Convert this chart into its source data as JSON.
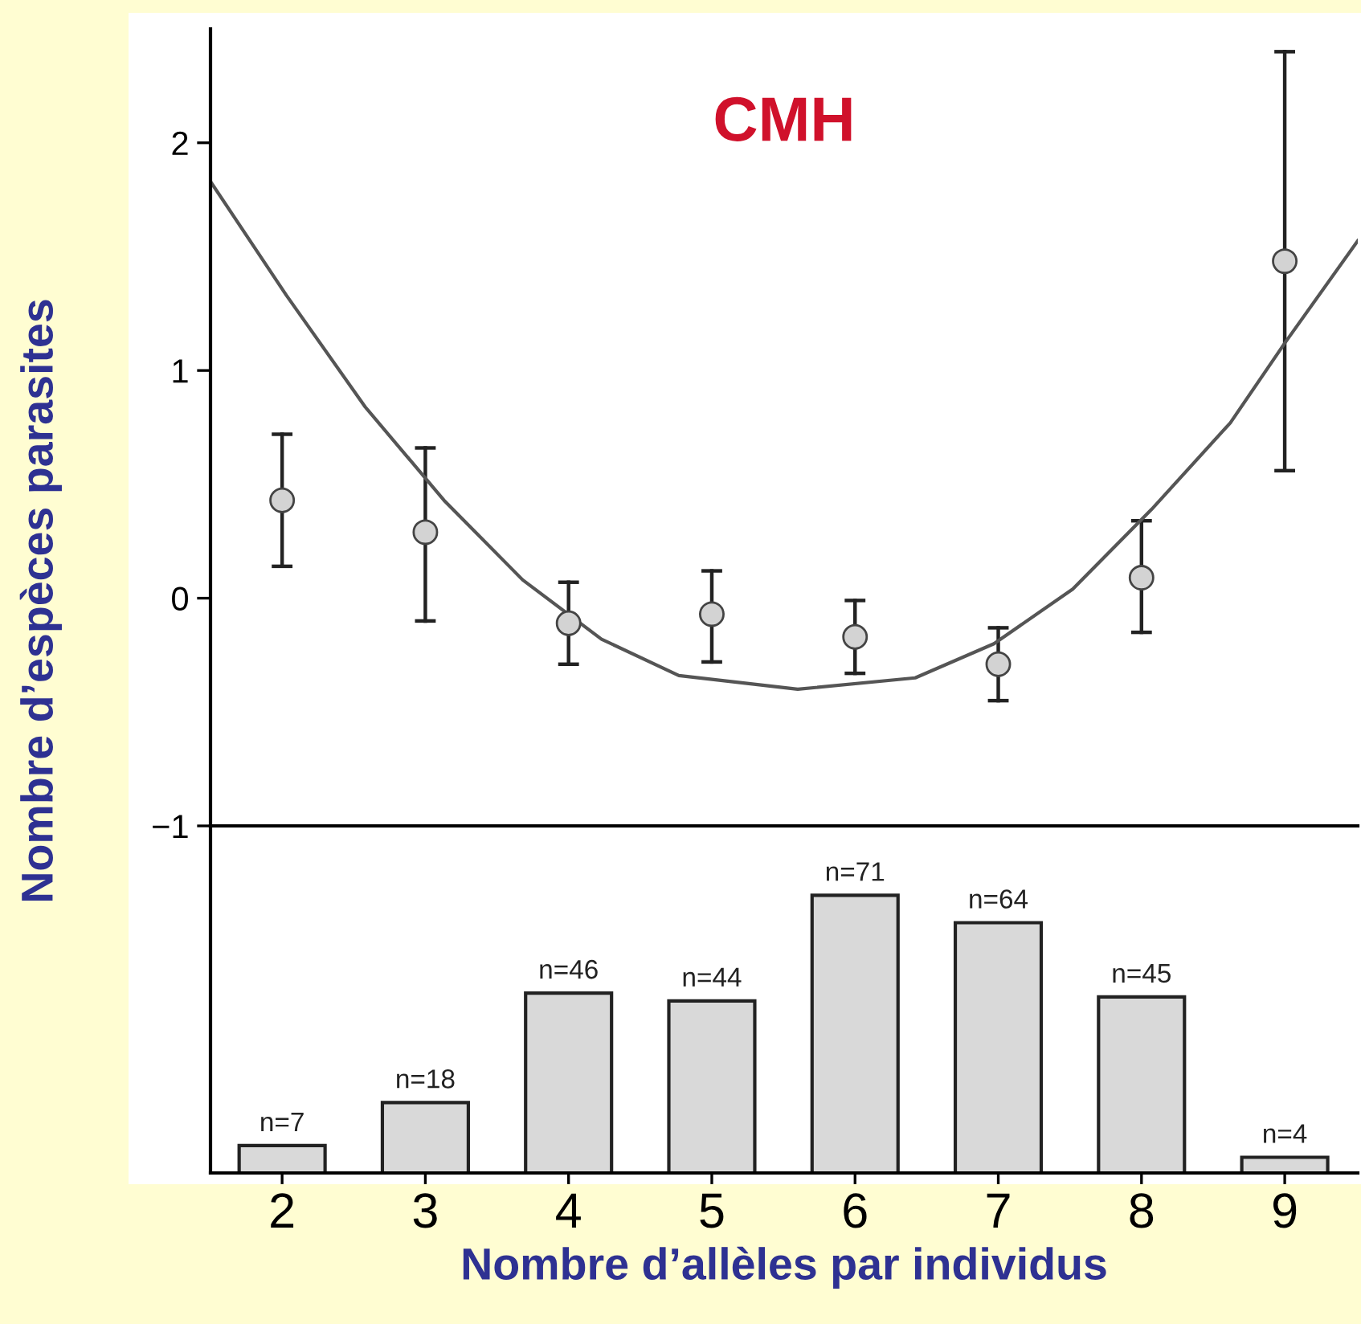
{
  "chart_data": [
    {
      "type": "scatter",
      "ylabel": "Nombre d’espèces parasites",
      "annotations": [
        "CMH"
      ],
      "x": [
        2,
        3,
        4,
        5,
        6,
        7,
        8,
        9
      ],
      "xlim": [
        1.5,
        9.51
      ],
      "ylim": [
        -1,
        2.5
      ],
      "yticks": [
        {
          "value": -1,
          "label": "−1"
        },
        0,
        1,
        2
      ],
      "tick_labels": "y",
      "series": [
        {
          "color": "#d3d3d3",
          "marker": "circle",
          "values": [
            0.43,
            0.29,
            -0.11,
            -0.07,
            -0.17,
            -0.29,
            0.09,
            1.48
          ],
          "errors": [
            [
              0.14,
              0.72
            ],
            [
              -0.1,
              0.66
            ],
            [
              -0.29,
              0.07
            ],
            [
              -0.28,
              0.12
            ],
            [
              -0.33,
              -0.01
            ],
            [
              -0.45,
              -0.13
            ],
            [
              -0.15,
              0.34
            ],
            [
              0.56,
              2.4
            ]
          ]
        },
        {
          "type": "line",
          "marker": "none",
          "color": "#555555",
          "x": [
            1.5,
            2.03,
            2.58,
            3.13,
            3.68,
            4.23,
            4.77,
            5.6,
            6.42,
            6.97,
            7.52,
            8.07,
            8.62,
            9.0,
            9.51
          ],
          "values": [
            1.83,
            1.33,
            0.84,
            0.43,
            0.08,
            -0.18,
            -0.34,
            -0.4,
            -0.35,
            -0.2,
            0.04,
            0.39,
            0.77,
            1.12,
            1.57
          ]
        }
      ]
    },
    {
      "type": "bar",
      "xlabel": "Nombre d’allèles par individus",
      "x": [
        2,
        3,
        4,
        5,
        6,
        7,
        8,
        9
      ],
      "xlim": [
        1.5,
        9.51
      ],
      "xticks": [
        2,
        3,
        4,
        5,
        6,
        7,
        8,
        9
      ],
      "tick_labels": "x",
      "color": "#d9d9d9",
      "values": [
        7,
        18,
        46,
        44,
        71,
        64,
        45,
        4
      ],
      "value_labels": [
        "n=7",
        "n=18",
        "n=46",
        "n=44",
        "n=71",
        "n=64",
        "n=45",
        "n=4"
      ]
    }
  ]
}
